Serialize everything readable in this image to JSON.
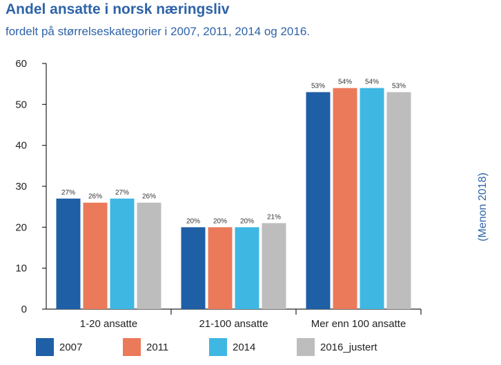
{
  "title": "Andel ansatte i norsk næringsliv",
  "subtitle": "fordelt på størrelseskategorier i 2007, 2011, 2014 og 2016.",
  "source": "(Menon 2018)",
  "chart_data": {
    "type": "bar",
    "categories": [
      "1-20 ansatte",
      "21-100 ansatte",
      "Mer enn 100 ansatte"
    ],
    "series": [
      {
        "name": "2007",
        "color": "#1f5fa6",
        "values": [
          27,
          20,
          53
        ],
        "labels": [
          "27%",
          "20%",
          "53%"
        ]
      },
      {
        "name": "2011",
        "color": "#eb7a5a",
        "values": [
          26,
          20,
          54
        ],
        "labels": [
          "26%",
          "20%",
          "54%"
        ]
      },
      {
        "name": "2014",
        "color": "#3fb7e3",
        "values": [
          27,
          20,
          54
        ],
        "labels": [
          "27%",
          "20%",
          "54%"
        ]
      },
      {
        "name": "2016_justert",
        "color": "#bdbdbd",
        "values": [
          26,
          21,
          53
        ],
        "labels": [
          "26%",
          "21%",
          "53%"
        ]
      }
    ],
    "ylim": [
      0,
      60
    ],
    "yticks": [
      0,
      10,
      20,
      30,
      40,
      50,
      60
    ],
    "xlabel": "",
    "ylabel": "",
    "grid": false,
    "legend_position": "bottom"
  }
}
